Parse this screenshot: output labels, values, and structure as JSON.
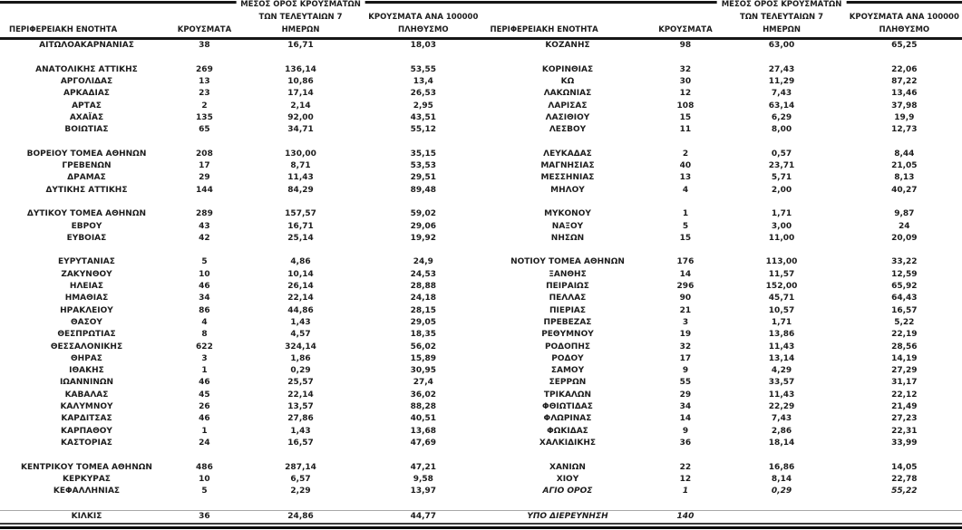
{
  "table_header": {
    "region_col": "ΠΕΡΙΦΕΡΕΙΑΚΗ ΕΝΟΤΗΤΑ",
    "cases_col": "ΚΡΟΥΣΜΑΤΑ",
    "avg7_col_line1": "ΜΕΣΟΣ ΟΡΟΣ ΚΡΟΥΣΜΑΤΩΝ",
    "avg7_col_line2": "ΤΩΝ ΤΕΛΕΥΤΑΙΩΝ 7",
    "avg7_col_line3": "ΗΜΕΡΩΝ",
    "per100k_col_line1": "ΚΡΟΥΣΜΑΤΑ ΑΝΑ 100000",
    "per100k_col_line2": "ΠΛΗΘΥΣΜΟ"
  },
  "left_table": {
    "rows": [
      [
        "ΑΙΤΩΛΟΑΚΑΡΝΑΝΙΑΣ",
        "38",
        "16,71",
        "18,03"
      ],
      null,
      [
        "ΑΝΑΤΟΛΙΚΗΣ ΑΤΤΙΚΗΣ",
        "269",
        "136,14",
        "53,55"
      ],
      [
        "ΑΡΓΟΛΙΔΑΣ",
        "13",
        "10,86",
        "13,4"
      ],
      [
        "ΑΡΚΑΔΙΑΣ",
        "23",
        "17,14",
        "26,53"
      ],
      [
        "ΑΡΤΑΣ",
        "2",
        "2,14",
        "2,95"
      ],
      [
        "ΑΧΑΪΑΣ",
        "135",
        "92,00",
        "43,51"
      ],
      [
        "ΒΟΙΩΤΙΑΣ",
        "65",
        "34,71",
        "55,12"
      ],
      null,
      [
        "ΒΟΡΕΙΟΥ ΤΟΜΕΑ ΑΘΗΝΩΝ",
        "208",
        "130,00",
        "35,15"
      ],
      [
        "ΓΡΕΒΕΝΩΝ",
        "17",
        "8,71",
        "53,53"
      ],
      [
        "ΔΡΑΜΑΣ",
        "29",
        "11,43",
        "29,51"
      ],
      [
        "ΔΥΤΙΚΗΣ ΑΤΤΙΚΗΣ",
        "144",
        "84,29",
        "89,48"
      ],
      null,
      [
        "ΔΥΤΙΚΟΥ ΤΟΜΕΑ ΑΘΗΝΩΝ",
        "289",
        "157,57",
        "59,02"
      ],
      [
        "ΕΒΡΟΥ",
        "43",
        "16,71",
        "29,06"
      ],
      [
        "ΕΥΒΟΙΑΣ",
        "42",
        "25,14",
        "19,92"
      ],
      null,
      [
        "ΕΥΡΥΤΑΝΙΑΣ",
        "5",
        "4,86",
        "24,9"
      ],
      [
        "ΖΑΚΥΝΘΟΥ",
        "10",
        "10,14",
        "24,53"
      ],
      [
        "ΗΛΕΙΑΣ",
        "46",
        "26,14",
        "28,88"
      ],
      [
        "ΗΜΑΘΙΑΣ",
        "34",
        "22,14",
        "24,18"
      ],
      [
        "ΗΡΑΚΛΕΙΟΥ",
        "86",
        "44,86",
        "28,15"
      ],
      [
        "ΘΑΣΟΥ",
        "4",
        "1,43",
        "29,05"
      ],
      [
        "ΘΕΣΠΡΩΤΙΑΣ",
        "8",
        "4,57",
        "18,35"
      ],
      [
        "ΘΕΣΣΑΛΟΝΙΚΗΣ",
        "622",
        "324,14",
        "56,02"
      ],
      [
        "ΘΗΡΑΣ",
        "3",
        "1,86",
        "15,89"
      ],
      [
        "ΙΘΑΚΗΣ",
        "1",
        "0,29",
        "30,95"
      ],
      [
        "ΙΩΑΝΝΙΝΩΝ",
        "46",
        "25,57",
        "27,4"
      ],
      [
        "ΚΑΒΑΛΑΣ",
        "45",
        "22,14",
        "36,02"
      ],
      [
        "ΚΑΛΥΜΝΟΥ",
        "26",
        "13,57",
        "88,28"
      ],
      [
        "ΚΑΡΔΙΤΣΑΣ",
        "46",
        "27,86",
        "40,51"
      ],
      [
        "ΚΑΡΠΑΘΟΥ",
        "1",
        "1,43",
        "13,68"
      ],
      [
        "ΚΑΣΤΟΡΙΑΣ",
        "24",
        "16,57",
        "47,69"
      ],
      null,
      [
        "ΚΕΝΤΡΙΚΟΥ ΤΟΜΕΑ ΑΘΗΝΩΝ",
        "486",
        "287,14",
        "47,21"
      ],
      [
        "ΚΕΡΚΥΡΑΣ",
        "10",
        "6,57",
        "9,58"
      ],
      [
        "ΚΕΦΑΛΛΗΝΙΑΣ",
        "5",
        "2,29",
        "13,97"
      ],
      null,
      [
        "ΚΙΛΚΙΣ",
        "36",
        "24,86",
        "44,77",
        "last"
      ]
    ]
  },
  "right_table": {
    "rows": [
      [
        "ΚΟΖΑΝΗΣ",
        "98",
        "63,00",
        "65,25"
      ],
      null,
      [
        "ΚΟΡΙΝΘΙΑΣ",
        "32",
        "27,43",
        "22,06"
      ],
      [
        "ΚΩ",
        "30",
        "11,29",
        "87,22"
      ],
      [
        "ΛΑΚΩΝΙΑΣ",
        "12",
        "7,43",
        "13,46"
      ],
      [
        "ΛΑΡΙΣΑΣ",
        "108",
        "63,14",
        "37,98"
      ],
      [
        "ΛΑΣΙΘΙΟΥ",
        "15",
        "6,29",
        "19,9"
      ],
      [
        "ΛΕΣΒΟΥ",
        "11",
        "8,00",
        "12,73"
      ],
      null,
      [
        "ΛΕΥΚΑΔΑΣ",
        "2",
        "0,57",
        "8,44"
      ],
      [
        "ΜΑΓΝΗΣΙΑΣ",
        "40",
        "23,71",
        "21,05"
      ],
      [
        "ΜΕΣΣΗΝΙΑΣ",
        "13",
        "5,71",
        "8,13"
      ],
      [
        "ΜΗΛΟΥ",
        "4",
        "2,00",
        "40,27"
      ],
      null,
      [
        "ΜΥΚΟΝΟΥ",
        "1",
        "1,71",
        "9,87"
      ],
      [
        "ΝΑΞΟΥ",
        "5",
        "3,00",
        "24"
      ],
      [
        "ΝΗΣΩΝ",
        "15",
        "11,00",
        "20,09"
      ],
      null,
      [
        "ΝΟΤΙΟΥ ΤΟΜΕΑ ΑΘΗΝΩΝ",
        "176",
        "113,00",
        "33,22"
      ],
      [
        "ΞΑΝΘΗΣ",
        "14",
        "11,57",
        "12,59"
      ],
      [
        "ΠΕΙΡΑΙΩΣ",
        "296",
        "152,00",
        "65,92"
      ],
      [
        "ΠΕΛΛΑΣ",
        "90",
        "45,71",
        "64,43"
      ],
      [
        "ΠΙΕΡΙΑΣ",
        "21",
        "10,57",
        "16,57"
      ],
      [
        "ΠΡΕΒΕΖΑΣ",
        "3",
        "1,71",
        "5,22"
      ],
      [
        "ΡΕΘΥΜΝΟΥ",
        "19",
        "13,86",
        "22,19"
      ],
      [
        "ΡΟΔΟΠΗΣ",
        "32",
        "11,43",
        "28,56"
      ],
      [
        "ΡΟΔΟΥ",
        "17",
        "13,14",
        "14,19"
      ],
      [
        "ΣΑΜΟΥ",
        "9",
        "4,29",
        "27,29"
      ],
      [
        "ΣΕΡΡΩΝ",
        "55",
        "33,57",
        "31,17"
      ],
      [
        "ΤΡΙΚΑΛΩΝ",
        "29",
        "11,43",
        "22,12"
      ],
      [
        "ΦΘΙΩΤΙΔΑΣ",
        "34",
        "22,29",
        "21,49"
      ],
      [
        "ΦΛΩΡΙΝΑΣ",
        "14",
        "7,43",
        "27,23"
      ],
      [
        "ΦΩΚΙΔΑΣ",
        "9",
        "2,86",
        "22,31"
      ],
      [
        "ΧΑΛΚΙΔΙΚΗΣ",
        "36",
        "18,14",
        "33,99"
      ],
      null,
      [
        "ΧΑΝΙΩΝ",
        "22",
        "16,86",
        "14,05"
      ],
      [
        "ΧΙΟΥ",
        "12",
        "8,14",
        "22,78"
      ],
      [
        "ΑΓΙΟ ΟΡΟΣ",
        "1",
        "0,29",
        "55,22",
        "italic"
      ],
      null,
      [
        "ΥΠΟ ΔΙΕΡΕΥΝΗΣΗ",
        "140",
        "",
        "",
        "last italic"
      ]
    ]
  }
}
